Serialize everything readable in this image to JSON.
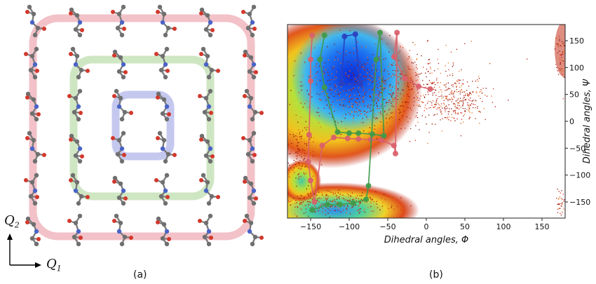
{
  "figure": {
    "panel_a": {
      "caption": "(a)",
      "axis_q1": "Q",
      "axis_q1_sub": "1",
      "axis_q2": "Q",
      "axis_q2_sub": "2",
      "grid_size": 6,
      "rings": [
        {
          "name": "outer",
          "color": "#f2c2c8"
        },
        {
          "name": "middle",
          "color": "#cfe6c3"
        },
        {
          "name": "inner",
          "color": "#c5c8ee"
        }
      ]
    },
    "panel_b": {
      "caption": "(b)",
      "xlabel": "Dihedral angles, Φ",
      "ylabel": "Dihedral angles, Ψ"
    }
  },
  "chart_data": {
    "type": "scatter",
    "title": "",
    "xlabel": "Dihedral angles, Φ",
    "ylabel": "Dihedral angles, Ψ",
    "xlim": [
      -180,
      180
    ],
    "ylim": [
      -180,
      180
    ],
    "xticks": [
      -150,
      -100,
      -50,
      0,
      50,
      100,
      150
    ],
    "yticks": [
      -150,
      -100,
      -50,
      0,
      50,
      100,
      150
    ],
    "y_axis_side": "right",
    "grid": false,
    "series": [
      {
        "color": "#d9606a",
        "points": [
          [
            -148,
            160
          ],
          [
            -150,
            115
          ],
          [
            -150,
            75
          ],
          [
            -152,
            -25
          ],
          [
            -153,
            -75
          ],
          [
            -150,
            -110
          ],
          [
            -145,
            -150
          ],
          [
            -135,
            -45
          ],
          [
            -120,
            -30
          ],
          [
            -102,
            -32
          ],
          [
            -88,
            -33
          ],
          [
            -72,
            -34
          ],
          [
            -58,
            -35
          ],
          [
            -42,
            -45
          ],
          [
            -40,
            -60
          ],
          [
            -38,
            165
          ],
          [
            -42,
            120
          ],
          [
            -28,
            80
          ],
          [
            -10,
            65
          ],
          [
            5,
            60
          ]
        ],
        "path": [
          [
            -148,
            160
          ],
          [
            -150,
            115
          ],
          [
            -150,
            75
          ],
          [
            -152,
            -25
          ],
          [
            -153,
            -75
          ],
          [
            -150,
            -110
          ],
          [
            -145,
            -150
          ],
          [
            -135,
            -45
          ],
          [
            -120,
            -30
          ],
          [
            -102,
            -32
          ],
          [
            -88,
            -33
          ],
          [
            -72,
            -34
          ],
          [
            -58,
            -35
          ],
          [
            -42,
            -45
          ],
          [
            -40,
            -60
          ],
          [
            -38,
            165
          ],
          [
            -42,
            120
          ],
          [
            -28,
            80
          ],
          [
            -10,
            65
          ],
          [
            5,
            60
          ]
        ]
      },
      {
        "color": "#3f9a4a",
        "points": [
          [
            -132,
            160
          ],
          [
            -138,
            115
          ],
          [
            -132,
            63
          ],
          [
            -115,
            -20
          ],
          [
            -100,
            -22
          ],
          [
            -88,
            -22
          ],
          [
            -70,
            -24
          ],
          [
            -55,
            -27
          ],
          [
            -60,
            165
          ],
          [
            -65,
            115
          ],
          [
            -75,
            -120
          ],
          [
            -78,
            -145
          ],
          [
            -95,
            -152
          ],
          [
            -112,
            -155
          ],
          [
            -128,
            -155
          ],
          [
            -148,
            -165
          ]
        ],
        "path": [
          [
            -132,
            160
          ],
          [
            -138,
            115
          ],
          [
            -132,
            63
          ],
          [
            -115,
            -20
          ],
          [
            -100,
            -22
          ],
          [
            -88,
            -22
          ],
          [
            -70,
            -24
          ],
          [
            -55,
            -27
          ],
          [
            -60,
            165
          ],
          [
            -65,
            115
          ],
          [
            -75,
            -120
          ],
          [
            -78,
            -145
          ],
          [
            -95,
            -152
          ],
          [
            -112,
            -155
          ],
          [
            -128,
            -155
          ],
          [
            -148,
            -165
          ]
        ]
      },
      {
        "color": "#2a3fbf",
        "points": [
          [
            -92,
            162
          ],
          [
            -106,
            158
          ],
          [
            -110,
            70
          ],
          [
            -86,
            70
          ]
        ],
        "path": [
          [
            -92,
            162
          ],
          [
            -106,
            158
          ],
          [
            -110,
            70
          ],
          [
            -86,
            70
          ],
          [
            -92,
            162
          ]
        ]
      }
    ]
  }
}
